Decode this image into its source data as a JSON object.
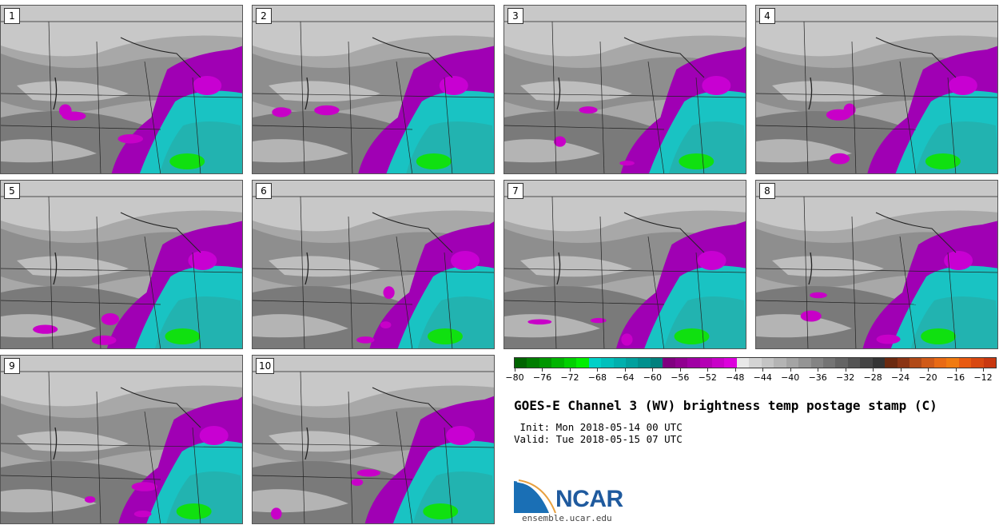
{
  "panels": [
    {
      "label": "1"
    },
    {
      "label": "2"
    },
    {
      "label": "3"
    },
    {
      "label": "4"
    },
    {
      "label": "5"
    },
    {
      "label": "6"
    },
    {
      "label": "7"
    },
    {
      "label": "8"
    },
    {
      "label": "9"
    },
    {
      "label": "10"
    }
  ],
  "colorbar": {
    "tick_labels": [
      "−80",
      "−76",
      "−72",
      "−68",
      "−64",
      "−60",
      "−56",
      "−52",
      "−48",
      "−44",
      "−40",
      "−36",
      "−32",
      "−28",
      "−24",
      "−20",
      "−16",
      "−12"
    ],
    "colors": [
      "#006400",
      "#007d00",
      "#009600",
      "#00b400",
      "#00d000",
      "#00ee00",
      "#00d0c8",
      "#00c0bc",
      "#00b0ae",
      "#00a09e",
      "#00908e",
      "#00807e",
      "#800080",
      "#900090",
      "#a000a4",
      "#b400b4",
      "#c800c8",
      "#dc00dc",
      "#e8e8e8",
      "#d4d4d4",
      "#c4c4c4",
      "#b4b4b4",
      "#a4a4a4",
      "#949494",
      "#848484",
      "#747474",
      "#646464",
      "#545454",
      "#444444",
      "#343434",
      "#6b2a10",
      "#8a3414",
      "#b04a18",
      "#d05a18",
      "#e86a14",
      "#f07a10",
      "#e85a10",
      "#d84810",
      "#c83810"
    ]
  },
  "title": "GOES-E Channel 3 (WV) brightness temp postage stamp (C)",
  "init": " Init: Mon 2018-05-14 00 UTC",
  "valid": "Valid: Tue 2018-05-15 07 UTC",
  "logo": {
    "name": "NCAR",
    "url": "ensemble.ucar.edu"
  }
}
